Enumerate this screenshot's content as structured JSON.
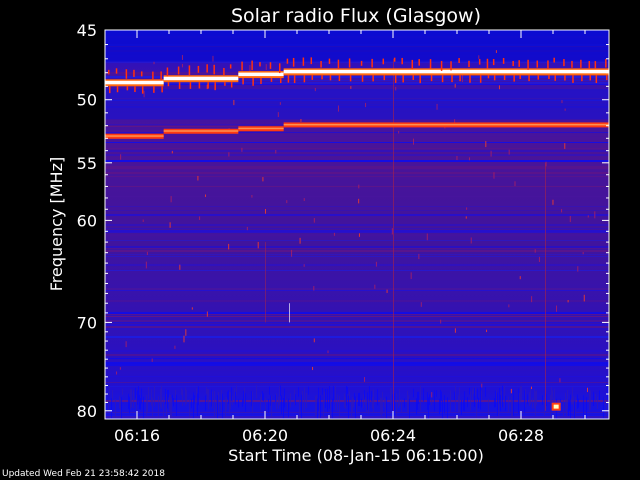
{
  "chart_data": {
    "type": "heatmap",
    "title": "Solar radio Flux (Glasgow)",
    "xlabel": "Start Time (08-Jan-15 06:15:00)",
    "ylabel": "Frequency [MHz]",
    "x_start": "06:15:00",
    "x_end": "06:30:45",
    "xticks": [
      "06:16",
      "06:20",
      "06:24",
      "06:28"
    ],
    "y_scale": "log",
    "ylim": [
      45,
      81
    ],
    "yticks": [
      45,
      50,
      55,
      60,
      70,
      80
    ],
    "colors": {
      "background": "#3c12a8",
      "low": "#1a1ae0",
      "mid": "#6a1a9a",
      "high": "#ff3010",
      "peak": "#ffffff"
    },
    "bright_lines": [
      {
        "name": "interference line A",
        "freq_segments": [
          {
            "t_start": "06:15:00",
            "t_end": "06:16:50",
            "mhz": 48.7
          },
          {
            "t_start": "06:16:50",
            "t_end": "06:19:10",
            "mhz": 48.4
          },
          {
            "t_start": "06:19:10",
            "t_end": "06:20:35",
            "mhz": 48.1
          },
          {
            "t_start": "06:20:35",
            "t_end": "06:30:45",
            "mhz": 47.9
          }
        ]
      },
      {
        "name": "interference line B",
        "freq_segments": [
          {
            "t_start": "06:15:00",
            "t_end": "06:16:50",
            "mhz": 52.8
          },
          {
            "t_start": "06:16:50",
            "t_end": "06:19:10",
            "mhz": 52.4
          },
          {
            "t_start": "06:19:10",
            "t_end": "06:20:35",
            "mhz": 52.2
          },
          {
            "t_start": "06:20:35",
            "t_end": "06:30:45",
            "mhz": 51.9
          }
        ]
      }
    ],
    "bright_spot": {
      "time": "06:29:05",
      "mhz": 79.5
    }
  },
  "footer": {
    "updated": "Updated Wed Feb 21 23:58:42 2018"
  }
}
